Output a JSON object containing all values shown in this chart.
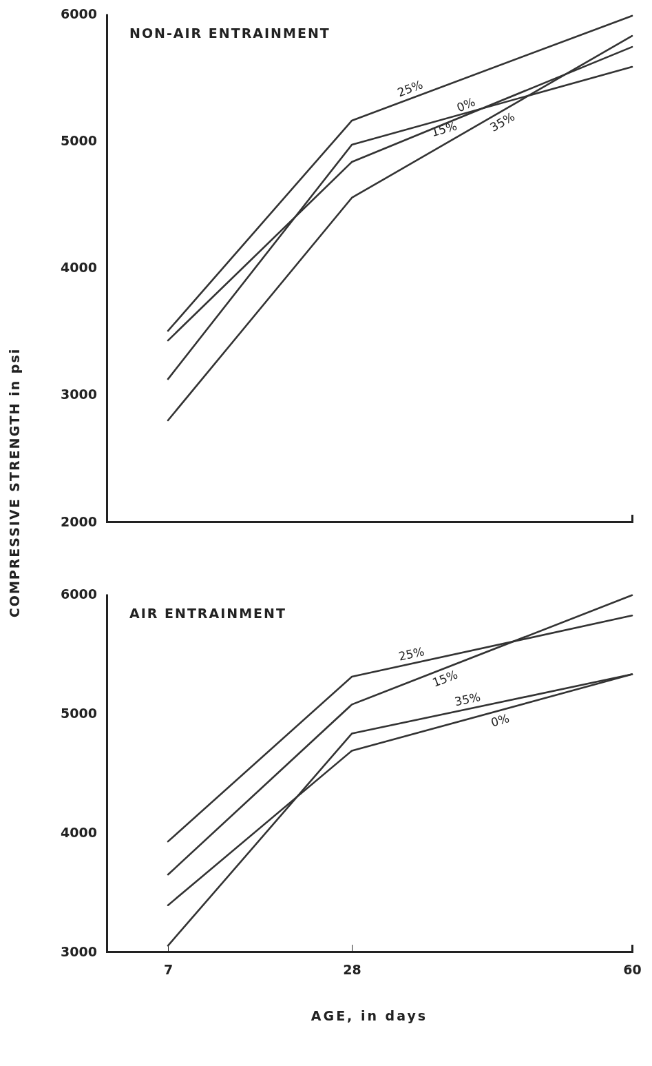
{
  "chart_data": [
    {
      "type": "line",
      "title": "NON-AIR ENTRAINMENT",
      "ylabel": "COMPRESSIVE STRENGTH in psi",
      "x": [
        7,
        28,
        60
      ],
      "xlim": [
        0,
        60
      ],
      "ylim": [
        2000,
        6000
      ],
      "yticks": [
        2000,
        3000,
        4000,
        5000,
        6000
      ],
      "tick_labels": "y",
      "grid": false,
      "marker": "none",
      "line_style": "solid",
      "series": [
        {
          "name": "25%",
          "color": "#333333",
          "values": [
            3503,
            5159,
            5984
          ]
        },
        {
          "name": "15%",
          "color": "#333333",
          "values": [
            3123,
            4969,
            5582
          ]
        },
        {
          "name": "0%",
          "color": "#333333",
          "values": [
            3427,
            4833,
            5739
          ]
        },
        {
          "name": "35%",
          "color": "#333333",
          "values": [
            2798,
            4551,
            5826
          ]
        }
      ]
    },
    {
      "type": "line",
      "title": "AIR ENTRAINMENT",
      "xlabel": "AGE, in days",
      "x": [
        7,
        28,
        60
      ],
      "xlim": [
        0,
        60
      ],
      "xticks": [
        7,
        28,
        60
      ],
      "ylim": [
        3000,
        6000
      ],
      "yticks": [
        3000,
        4000,
        5000,
        6000
      ],
      "grid": false,
      "marker": "none",
      "line_style": "solid",
      "series": [
        {
          "name": "25%",
          "color": "#333333",
          "values": [
            3924,
            5306,
            5819
          ]
        },
        {
          "name": "15%",
          "color": "#333333",
          "values": [
            3646,
            5073,
            5990
          ]
        },
        {
          "name": "35%",
          "color": "#333333",
          "values": [
            3050,
            4829,
            5326
          ]
        },
        {
          "name": "0%",
          "color": "#333333",
          "values": [
            3389,
            4685,
            5326
          ]
        }
      ]
    }
  ]
}
